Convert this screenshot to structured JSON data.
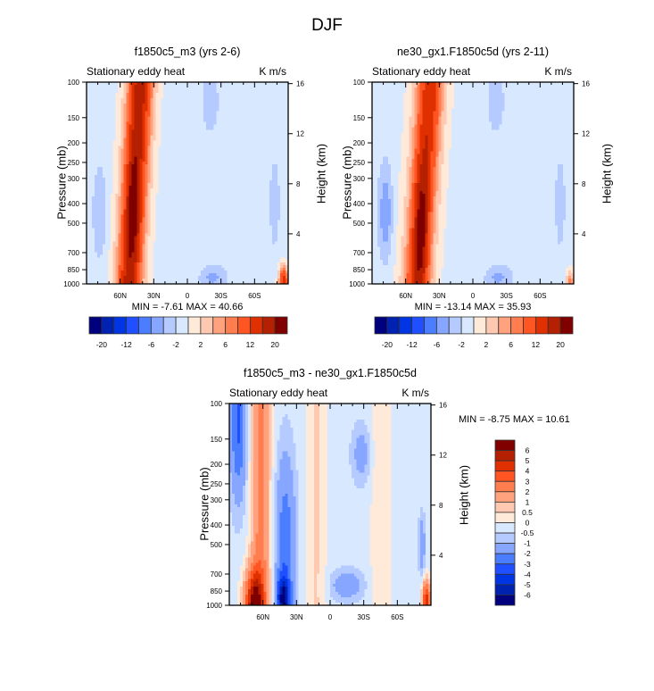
{
  "figure_title": "DJF",
  "chart_data": [
    {
      "type": "heatmap",
      "id": "panel-test",
      "title": "f1850c5_m3 (yrs 2-6)",
      "left_string": "Stationary eddy heat",
      "right_string": "K m/s",
      "xlabel": "",
      "ylabel": "Pressure (mb)",
      "ylabel_right": "Height (km)",
      "x_ticks": [
        "60N",
        "30N",
        "0",
        "30S",
        "60S"
      ],
      "x_tick_values": [
        60,
        30,
        0,
        -30,
        -60
      ],
      "xlim": [
        90,
        -90
      ],
      "y_ticks": [
        100,
        150,
        200,
        250,
        300,
        400,
        500,
        700,
        850,
        1000
      ],
      "ylim": [
        1000,
        100
      ],
      "y_right_ticks": [
        4,
        8,
        12,
        16
      ],
      "min_label": "MIN =  -7.61  MAX =  40.66",
      "min": -7.61,
      "max": 40.66,
      "colorbar": {
        "orientation": "horizontal",
        "levels": [
          -20,
          -16,
          -12,
          -8,
          -6,
          -4,
          -2,
          0,
          2,
          4,
          6,
          8,
          12,
          16,
          20
        ],
        "labels": [
          "-20",
          "-12",
          "-6",
          "-2",
          "2",
          "6",
          "12",
          "20"
        ]
      },
      "features": [
        {
          "name": "NH midlatitude positive band",
          "lat_center": 48,
          "value": "12-16 peak ~40 near 400mb"
        },
        {
          "name": "polar negative lobe",
          "lat_center": 78,
          "p_range": [
            300,
            700
          ],
          "value": "-2 to -4"
        },
        {
          "name": "SH lower trop negative",
          "lat_center": -20,
          "p_range": [
            850,
            1000
          ],
          "value": "-2 to -4"
        },
        {
          "name": "Antarctic surface positive",
          "lat_center": -85,
          "p_range": [
            800,
            1000
          ],
          "value": "6-20"
        }
      ]
    },
    {
      "type": "heatmap",
      "id": "panel-control",
      "title": "ne30_gx1.F1850c5d (yrs 2-11)",
      "left_string": "Stationary eddy heat",
      "right_string": "K m/s",
      "xlabel": "",
      "ylabel": "Pressure (mb)",
      "ylabel_right": "Height (km)",
      "x_ticks": [
        "60N",
        "30N",
        "0",
        "30S",
        "60S"
      ],
      "x_tick_values": [
        60,
        30,
        0,
        -30,
        -60
      ],
      "xlim": [
        90,
        -90
      ],
      "y_ticks": [
        100,
        150,
        200,
        250,
        300,
        400,
        500,
        700,
        850,
        1000
      ],
      "ylim": [
        1000,
        100
      ],
      "y_right_ticks": [
        4,
        8,
        12,
        16
      ],
      "min_label": "MIN = -13.14  MAX =  35.93",
      "min": -13.14,
      "max": 35.93,
      "colorbar": {
        "orientation": "horizontal",
        "levels": [
          -20,
          -16,
          -12,
          -8,
          -6,
          -4,
          -2,
          0,
          2,
          4,
          6,
          8,
          12,
          16,
          20
        ],
        "labels": [
          "-20",
          "-12",
          "-6",
          "-2",
          "2",
          "6",
          "12",
          "20"
        ]
      },
      "features": [
        {
          "name": "NH midlatitude positive band",
          "lat_center": 48,
          "value": "12-16 peak ~35 near 500mb"
        },
        {
          "name": "polar negative lobe",
          "lat_center": 78,
          "p_range": [
            300,
            700
          ],
          "value": "-2 to -6"
        },
        {
          "name": "SH lower trop negative",
          "lat_center": -20,
          "p_range": [
            850,
            1000
          ],
          "value": "-2 to -4"
        },
        {
          "name": "Antarctic surface positive",
          "lat_center": -85,
          "p_range": [
            850,
            1000
          ],
          "value": "4-12"
        }
      ]
    },
    {
      "type": "heatmap",
      "id": "panel-diff",
      "title": "f1850c5_m3 - ne30_gx1.F1850c5d",
      "left_string": "Stationary eddy heat",
      "right_string": "K m/s",
      "xlabel": "",
      "ylabel": "Pressure (mb)",
      "ylabel_right": "Height (km)",
      "x_ticks": [
        "60N",
        "30N",
        "0",
        "30S",
        "60S"
      ],
      "x_tick_values": [
        60,
        30,
        0,
        -30,
        -60
      ],
      "xlim": [
        90,
        -90
      ],
      "y_ticks": [
        100,
        150,
        200,
        250,
        300,
        400,
        500,
        700,
        850,
        1000
      ],
      "ylim": [
        1000,
        100
      ],
      "y_right_ticks": [
        4,
        8,
        12,
        16
      ],
      "min_label": "MIN =  -8.75  MAX =  10.61",
      "min": -8.75,
      "max": 10.61,
      "colorbar": {
        "orientation": "vertical",
        "levels": [
          -6,
          -5,
          -4,
          -3,
          -2,
          -1,
          -0.5,
          0,
          0.5,
          1,
          2,
          3,
          4,
          5,
          6
        ],
        "labels": [
          "6",
          "5",
          "4",
          "3",
          "2",
          "1",
          "0.5",
          "0",
          "-0.5",
          "-1",
          "-2",
          "-3",
          "-4",
          "-5",
          "-6"
        ]
      },
      "features": [
        {
          "name": "polar upper negative",
          "lat_center": 80,
          "p_range": [
            100,
            250
          ],
          "value": "-1 to -4"
        },
        {
          "name": "high-lat positive band",
          "lat_center": 62,
          "value": "1-3, peak 6 near surface"
        },
        {
          "name": "midlat negative band",
          "lat_center": 40,
          "p_range": [
            250,
            1000
          ],
          "value": "-1 to -6"
        },
        {
          "name": "Antarctic surface positive",
          "lat_center": -85,
          "p_range": [
            700,
            1000
          ],
          "value": "2-6"
        }
      ]
    }
  ],
  "palette": [
    "#00007f",
    "#0022b0",
    "#0035e6",
    "#1f4fff",
    "#4b7dff",
    "#86a6ff",
    "#b5cbff",
    "#d8e8ff",
    "#ffe9d9",
    "#ffc8b0",
    "#ffa27d",
    "#ff7d4f",
    "#ff5522",
    "#e03000",
    "#b42000",
    "#800000"
  ]
}
